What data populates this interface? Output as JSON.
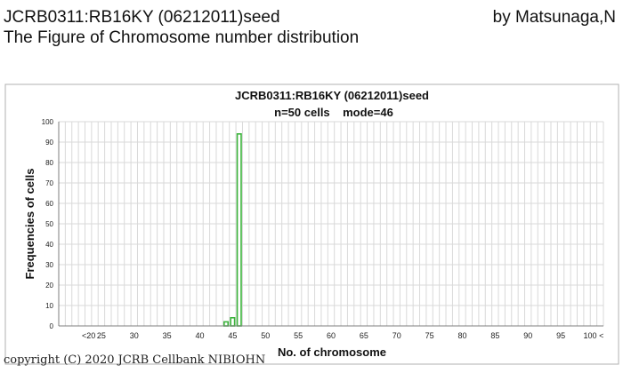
{
  "header": {
    "title": "JCRB0311:RB16KY (06212011)seed",
    "subtitle": "The Figure of Chromosome number distribution",
    "author": "by Matsunaga,N"
  },
  "footer": {
    "copyright": "copyright (C) 2020 JCRB Cellbank NIBIOHN"
  },
  "chart_data": {
    "type": "bar",
    "title": "JCRB0311:RB16KY (06212011)seed",
    "subtitle": "n=50 cells    mode=46",
    "xlabel": "No. of chromosome",
    "ylabel": "Frequencies of cells",
    "ylim": [
      0,
      100
    ],
    "yticks": [
      0,
      10,
      20,
      30,
      40,
      50,
      60,
      70,
      80,
      90,
      100
    ],
    "grid": true,
    "bar_color": "#3cb43c",
    "categories": [
      "<20",
      "20",
      "21",
      "22",
      "23",
      "24",
      "25",
      "26",
      "27",
      "28",
      "29",
      "30",
      "31",
      "32",
      "33",
      "34",
      "35",
      "36",
      "37",
      "38",
      "39",
      "40",
      "41",
      "42",
      "43",
      "44",
      "45",
      "46",
      "47",
      "48",
      "49",
      "50",
      "51",
      "52",
      "53",
      "54",
      "55",
      "56",
      "57",
      "58",
      "59",
      "60",
      "61",
      "62",
      "63",
      "64",
      "65",
      "66",
      "67",
      "68",
      "69",
      "70",
      "71",
      "72",
      "73",
      "74",
      "75",
      "76",
      "77",
      "78",
      "79",
      "80",
      "81",
      "82",
      "83",
      "84",
      "85",
      "86",
      "87",
      "88",
      "89",
      "90",
      "91",
      "92",
      "93",
      "94",
      "95",
      "96",
      "97",
      "98",
      "99",
      "100",
      "100<"
    ],
    "tick_labels": [
      "<20",
      "25",
      "30",
      "35",
      "40",
      "45",
      "50",
      "55",
      "60",
      "65",
      "70",
      "75",
      "80",
      "85",
      "90",
      "95",
      "100 <"
    ],
    "values": [
      0,
      0,
      0,
      0,
      0,
      0,
      0,
      0,
      0,
      0,
      0,
      0,
      0,
      0,
      0,
      0,
      0,
      0,
      0,
      0,
      0,
      0,
      0,
      0,
      0,
      2,
      4,
      94,
      0,
      0,
      0,
      0,
      0,
      0,
      0,
      0,
      0,
      0,
      0,
      0,
      0,
      0,
      0,
      0,
      0,
      0,
      0,
      0,
      0,
      0,
      0,
      0,
      0,
      0,
      0,
      0,
      0,
      0,
      0,
      0,
      0,
      0,
      0,
      0,
      0,
      0,
      0,
      0,
      0,
      0,
      0,
      0,
      0,
      0,
      0,
      0,
      0,
      0,
      0,
      0,
      0,
      0,
      0
    ]
  }
}
